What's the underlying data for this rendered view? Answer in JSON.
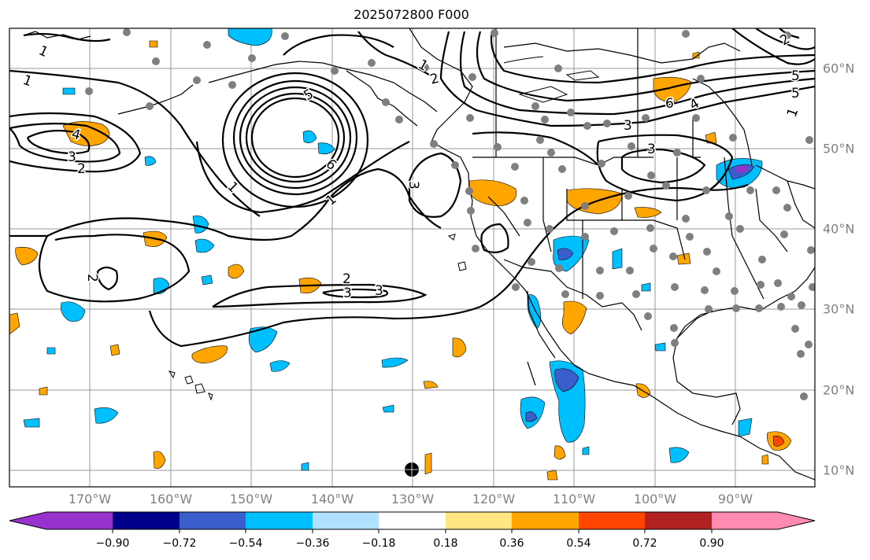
{
  "title": "2025072800 F000",
  "lon_ticks": [
    "170°W",
    "160°W",
    "150°W",
    "140°W",
    "130°W",
    "120°W",
    "110°W",
    "100°W",
    "90°W"
  ],
  "lat_ticks": [
    "60°N",
    "50°N",
    "40°N",
    "30°N",
    "20°N",
    "10°N"
  ],
  "colorbar": {
    "ticks": [
      "−0.90",
      "−0.72",
      "−0.54",
      "−0.36",
      "−0.18",
      "0.18",
      "0.36",
      "0.54",
      "0.72",
      "0.90"
    ],
    "colors": [
      "#9932CC",
      "#00008B",
      "#3A5FCD",
      "#00BFFF",
      "#B0E2FF",
      "#FFFFFF",
      "#FFE680",
      "#FFA500",
      "#FF4500",
      "#B22222",
      "#FF8CB0"
    ]
  },
  "contour_labels": [
    "1",
    "1",
    "1",
    "1",
    "1",
    "1",
    "2",
    "2",
    "2",
    "2",
    "3",
    "3",
    "3",
    "3",
    "3",
    "3",
    "4",
    "4",
    "5",
    "5",
    "5",
    "6",
    "6",
    "2"
  ],
  "marker_symbol": "●"
}
